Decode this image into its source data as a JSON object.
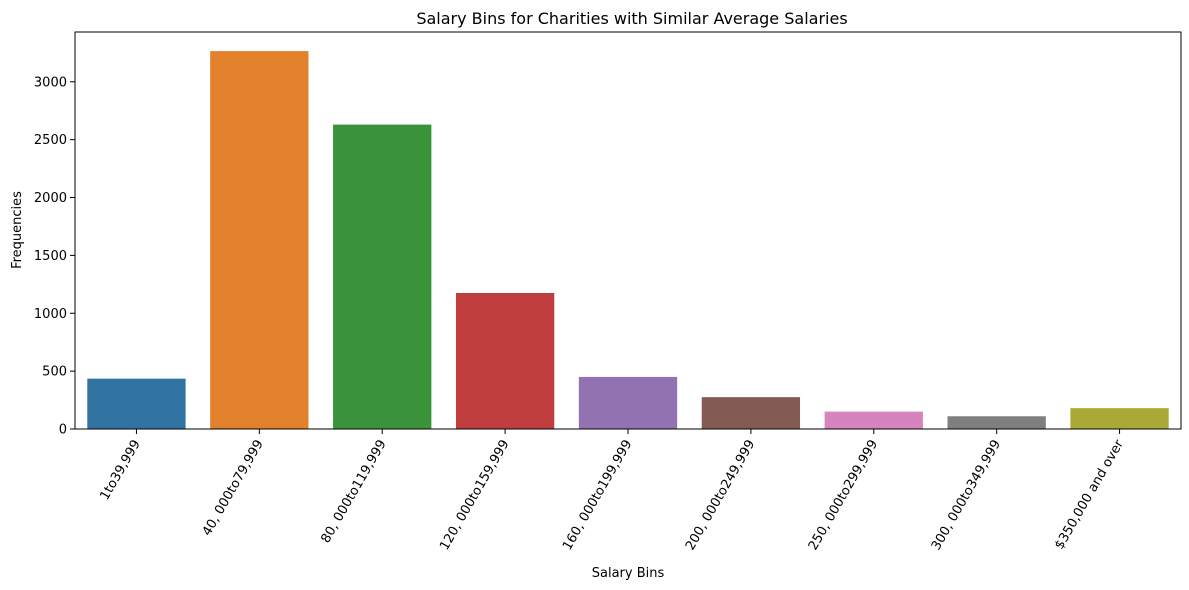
{
  "chart_data": {
    "type": "bar",
    "title": "Salary Bins for Charities with Similar Average Salaries",
    "xlabel": "Salary Bins",
    "ylabel": "Frequencies",
    "categories": [
      "1to39,999",
      "40, 000to79,999",
      "80, 000to119,999",
      "120, 000to159,999",
      "160, 000to199,999",
      "200, 000to249,999",
      "250, 000to299,999",
      "300, 000to349,999",
      "$350,000 and over"
    ],
    "values": [
      435,
      3265,
      2630,
      1175,
      450,
      275,
      150,
      110,
      180
    ],
    "colors": [
      "#3274a1",
      "#e1812c",
      "#3a923a",
      "#c03d3e",
      "#9372b2",
      "#845b53",
      "#d684bd",
      "#7f7f7f",
      "#a9aa35"
    ],
    "ylim": [
      0,
      3430
    ],
    "yticks": [
      0,
      500,
      1000,
      1500,
      2000,
      2500,
      3000
    ],
    "grid": false,
    "legend": false
  }
}
